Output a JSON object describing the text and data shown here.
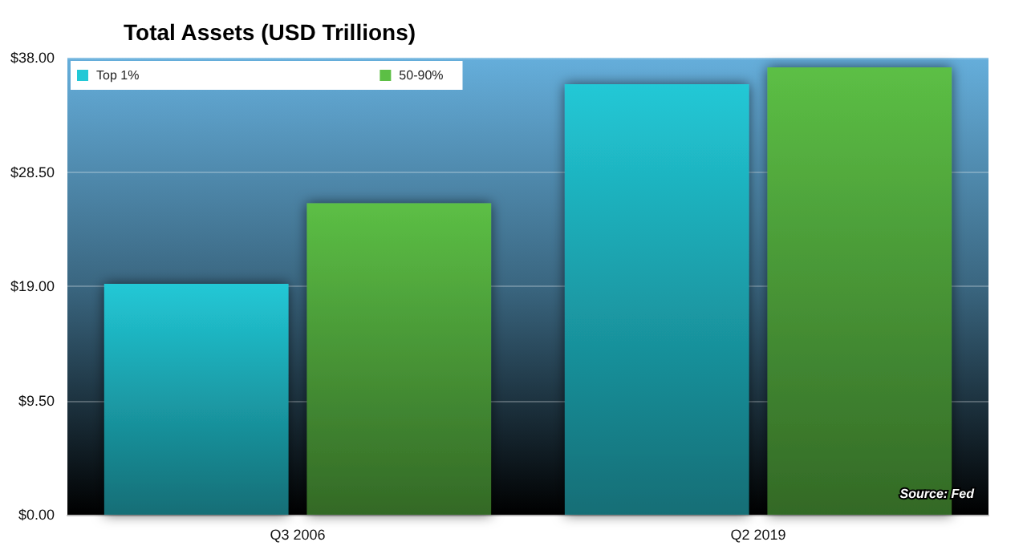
{
  "chart_data": {
    "type": "bar",
    "title": "Total Assets (USD Trillions)",
    "categories": [
      "Q3 2006",
      "Q2 2019"
    ],
    "series": [
      {
        "name": "Top 1%",
        "color": "#22c8d6",
        "values": [
          19.2,
          35.8
        ]
      },
      {
        "name": "50-90%",
        "color": "#5cbf45",
        "values": [
          25.9,
          37.2
        ]
      }
    ],
    "ylim": [
      0,
      38
    ],
    "yticks": [
      {
        "value": 0,
        "label": "$0.00"
      },
      {
        "value": 9.5,
        "label": "$9.50"
      },
      {
        "value": 19,
        "label": "$19.00"
      },
      {
        "value": 28.5,
        "label": "$28.50"
      },
      {
        "value": 38,
        "label": "$38.00"
      }
    ],
    "grid": "y",
    "legend": "top left",
    "annotations": [
      "Source: Fed"
    ]
  }
}
